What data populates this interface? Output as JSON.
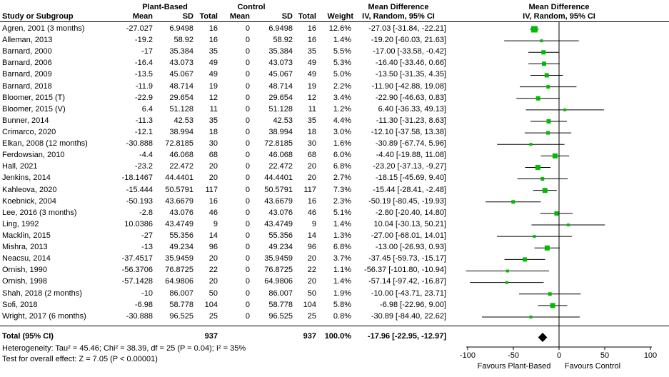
{
  "chart_data": {
    "type": "forest",
    "columns": {
      "study": "Study or Subgroup",
      "group1": "Plant-Based",
      "group2": "Control",
      "mean": "Mean",
      "sd": "SD",
      "total": "Total",
      "weight": "Weight",
      "md_title": "Mean Difference",
      "md_subtitle": "IV, Random, 95% CI"
    },
    "studies": [
      {
        "name": "Agren, 2001 (3 months)",
        "pb_mean": "-27.027",
        "pb_sd": "6.9498",
        "pb_total": "16",
        "c_mean": "0",
        "c_sd": "6.9498",
        "c_total": "16",
        "weight": "12.6%",
        "md_ci": "-27.03 [-31.84, -22.21]"
      },
      {
        "name": "Alleman, 2013",
        "pb_mean": "-19.2",
        "pb_sd": "58.92",
        "pb_total": "16",
        "c_mean": "0",
        "c_sd": "58.92",
        "c_total": "16",
        "weight": "1.4%",
        "md_ci": "-19.20 [-60.03, 21.63]"
      },
      {
        "name": "Barnard, 2000",
        "pb_mean": "-17",
        "pb_sd": "35.384",
        "pb_total": "35",
        "c_mean": "0",
        "c_sd": "35.384",
        "c_total": "35",
        "weight": "5.5%",
        "md_ci": "-17.00 [-33.58, -0.42]"
      },
      {
        "name": "Barnard, 2006",
        "pb_mean": "-16.4",
        "pb_sd": "43.073",
        "pb_total": "49",
        "c_mean": "0",
        "c_sd": "43.073",
        "c_total": "49",
        "weight": "5.3%",
        "md_ci": "-16.40 [-33.46, 0.66]"
      },
      {
        "name": "Barnard, 2009",
        "pb_mean": "-13.5",
        "pb_sd": "45.067",
        "pb_total": "49",
        "c_mean": "0",
        "c_sd": "45.067",
        "c_total": "49",
        "weight": "5.0%",
        "md_ci": "-13.50 [-31.35, 4.35]"
      },
      {
        "name": "Barnard, 2018",
        "pb_mean": "-11.9",
        "pb_sd": "48.714",
        "pb_total": "19",
        "c_mean": "0",
        "c_sd": "48.714",
        "c_total": "19",
        "weight": "2.2%",
        "md_ci": "-11.90 [-42.88, 19.08]"
      },
      {
        "name": "Bloomer, 2015 (T)",
        "pb_mean": "-22.9",
        "pb_sd": "29.654",
        "pb_total": "12",
        "c_mean": "0",
        "c_sd": "29.654",
        "c_total": "12",
        "weight": "3.4%",
        "md_ci": "-22.90 [-46.63, 0.83]"
      },
      {
        "name": "Bloomer, 2015 (V)",
        "pb_mean": "6.4",
        "pb_sd": "51.128",
        "pb_total": "11",
        "c_mean": "0",
        "c_sd": "51.128",
        "c_total": "11",
        "weight": "1.2%",
        "md_ci": "6.40 [-36.33, 49.13]"
      },
      {
        "name": "Bunner, 2014",
        "pb_mean": "-11.3",
        "pb_sd": "42.53",
        "pb_total": "35",
        "c_mean": "0",
        "c_sd": "42.53",
        "c_total": "35",
        "weight": "4.4%",
        "md_ci": "-11.30 [-31.23, 8.63]"
      },
      {
        "name": "Crimarco, 2020",
        "pb_mean": "-12.1",
        "pb_sd": "38.994",
        "pb_total": "18",
        "c_mean": "0",
        "c_sd": "38.994",
        "c_total": "18",
        "weight": "3.0%",
        "md_ci": "-12.10 [-37.58, 13.38]"
      },
      {
        "name": "Elkan, 2008 (12 months)",
        "pb_mean": "-30.888",
        "pb_sd": "72.8185",
        "pb_total": "30",
        "c_mean": "0",
        "c_sd": "72.8185",
        "c_total": "30",
        "weight": "1.6%",
        "md_ci": "-30.89 [-67.74, 5.96]"
      },
      {
        "name": "Ferdowsian, 2010",
        "pb_mean": "-4.4",
        "pb_sd": "46.068",
        "pb_total": "68",
        "c_mean": "0",
        "c_sd": "46.068",
        "c_total": "68",
        "weight": "6.0%",
        "md_ci": "-4.40 [-19.88, 11.08]"
      },
      {
        "name": "Hall, 2021",
        "pb_mean": "-23.2",
        "pb_sd": "22.472",
        "pb_total": "20",
        "c_mean": "0",
        "c_sd": "22.472",
        "c_total": "20",
        "weight": "6.8%",
        "md_ci": "-23.20 [-37.13, -9.27]"
      },
      {
        "name": "Jenkins, 2014",
        "pb_mean": "-18.1467",
        "pb_sd": "44.4401",
        "pb_total": "20",
        "c_mean": "0",
        "c_sd": "44.4401",
        "c_total": "20",
        "weight": "2.7%",
        "md_ci": "-18.15 [-45.69, 9.40]"
      },
      {
        "name": "Kahleova, 2020",
        "pb_mean": "-15.444",
        "pb_sd": "50.5791",
        "pb_total": "117",
        "c_mean": "0",
        "c_sd": "50.5791",
        "c_total": "117",
        "weight": "7.3%",
        "md_ci": "-15.44 [-28.41, -2.48]"
      },
      {
        "name": "Koebnick, 2004",
        "pb_mean": "-50.193",
        "pb_sd": "43.6679",
        "pb_total": "16",
        "c_mean": "0",
        "c_sd": "43.6679",
        "c_total": "16",
        "weight": "2.3%",
        "md_ci": "-50.19 [-80.45, -19.93]"
      },
      {
        "name": "Lee, 2016 (3 months)",
        "pb_mean": "-2.8",
        "pb_sd": "43.076",
        "pb_total": "46",
        "c_mean": "0",
        "c_sd": "43.076",
        "c_total": "46",
        "weight": "5.1%",
        "md_ci": "-2.80 [-20.40, 14.80]"
      },
      {
        "name": "Ling, 1992",
        "pb_mean": "10.0386",
        "pb_sd": "43.4749",
        "pb_total": "9",
        "c_mean": "0",
        "c_sd": "43.4749",
        "c_total": "9",
        "weight": "1.4%",
        "md_ci": "10.04 [-30.13, 50.21]"
      },
      {
        "name": "Macklin, 2015",
        "pb_mean": "-27",
        "pb_sd": "55.356",
        "pb_total": "14",
        "c_mean": "0",
        "c_sd": "55.356",
        "c_total": "14",
        "weight": "1.3%",
        "md_ci": "-27.00 [-68.01, 14.01]"
      },
      {
        "name": "Mishra, 2013",
        "pb_mean": "-13",
        "pb_sd": "49.234",
        "pb_total": "96",
        "c_mean": "0",
        "c_sd": "49.234",
        "c_total": "96",
        "weight": "6.8%",
        "md_ci": "-13.00 [-26.93, 0.93]"
      },
      {
        "name": "Neacsu, 2014",
        "pb_mean": "-37.4517",
        "pb_sd": "35.9459",
        "pb_total": "20",
        "c_mean": "0",
        "c_sd": "35.9459",
        "c_total": "20",
        "weight": "3.7%",
        "md_ci": "-37.45 [-59.73, -15.17]"
      },
      {
        "name": "Ornish, 1990",
        "pb_mean": "-56.3706",
        "pb_sd": "76.8725",
        "pb_total": "22",
        "c_mean": "0",
        "c_sd": "76.8725",
        "c_total": "22",
        "weight": "1.1%",
        "md_ci": "-56.37 [-101.80, -10.94]"
      },
      {
        "name": "Ornish, 1998",
        "pb_mean": "-57.1428",
        "pb_sd": "64.9806",
        "pb_total": "20",
        "c_mean": "0",
        "c_sd": "64.9806",
        "c_total": "20",
        "weight": "1.4%",
        "md_ci": "-57.14 [-97.42, -16.87]"
      },
      {
        "name": "Shah, 2018 (2 months)",
        "pb_mean": "-10",
        "pb_sd": "86.007",
        "pb_total": "50",
        "c_mean": "0",
        "c_sd": "86.007",
        "c_total": "50",
        "weight": "1.9%",
        "md_ci": "-10.00 [-43.71, 23.71]"
      },
      {
        "name": "Sofi, 2018",
        "pb_mean": "-6.98",
        "pb_sd": "58.778",
        "pb_total": "104",
        "c_mean": "0",
        "c_sd": "58.778",
        "c_total": "104",
        "weight": "5.8%",
        "md_ci": "-6.98 [-22.96, 9.00]"
      },
      {
        "name": "Wright, 2017 (6 months)",
        "pb_mean": "-30.888",
        "pb_sd": "96.525",
        "pb_total": "25",
        "c_mean": "0",
        "c_sd": "96.525",
        "c_total": "25",
        "weight": "0.8%",
        "md_ci": "-30.89 [-84.40, 22.62]"
      }
    ],
    "total": {
      "label": "Total (95% CI)",
      "pb_total": "937",
      "c_total": "937",
      "weight": "100.0%",
      "md_ci": "-17.96 [-22.95, -12.97]"
    },
    "heterogeneity": "Heterogeneity: Tau² = 45.46; Chi² = 38.39, df = 25 (P = 0.04); I² = 35%",
    "overall_effect": "Test for overall effect: Z = 7.05 (P < 0.00001)",
    "axis": {
      "min": -100,
      "max": 100,
      "ticks": [
        -100,
        -50,
        0,
        50,
        100
      ],
      "favours_left": "Favours Plant-Based",
      "favours_right": "Favours Control"
    },
    "colors": {
      "marker": "#00bb00",
      "diamond": "#000000",
      "line": "#000000"
    }
  }
}
